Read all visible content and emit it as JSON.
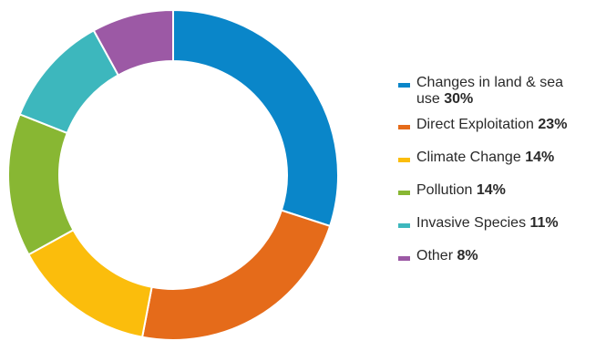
{
  "chart_data": {
    "type": "pie",
    "donut": true,
    "legend_position": "right",
    "slices": [
      {
        "label": "Changes in land & sea use",
        "value": 30,
        "value_label": "30%",
        "color": "#0a86c9"
      },
      {
        "label": "Direct Exploitation",
        "value": 23,
        "value_label": "23%",
        "color": "#e56b1a"
      },
      {
        "label": "Climate Change",
        "value": 14,
        "value_label": "14%",
        "color": "#fbbd0c"
      },
      {
        "label": "Pollution",
        "value": 14,
        "value_label": "14%",
        "color": "#88b733"
      },
      {
        "label": "Invasive Species",
        "value": 11,
        "value_label": "11%",
        "color": "#3db7bd"
      },
      {
        "label": "Other",
        "value": 8,
        "value_label": "8%",
        "color": "#9c59a5"
      }
    ]
  }
}
